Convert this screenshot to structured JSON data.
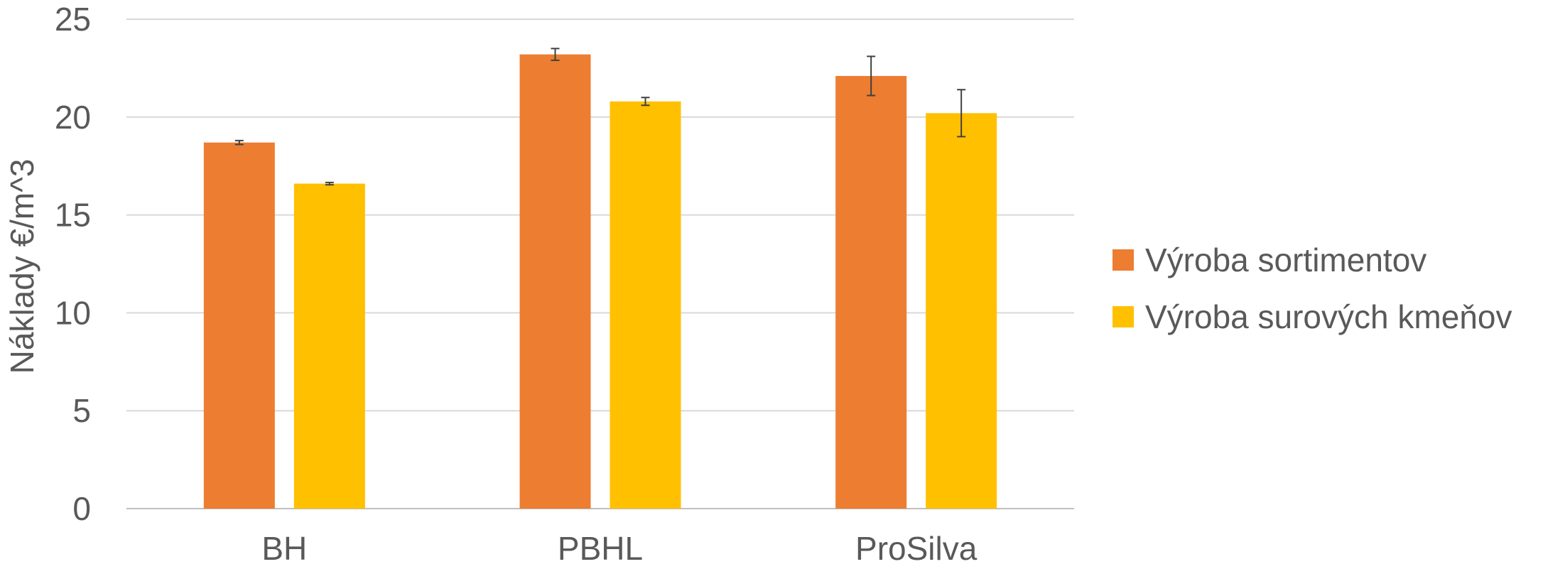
{
  "chart_data": {
    "type": "bar",
    "title": "",
    "xlabel": "",
    "ylabel": "Náklady €/m^3",
    "categories": [
      "BH",
      "PBHL",
      "ProSilva"
    ],
    "ylim": [
      0,
      25
    ],
    "yticks": [
      "0",
      "5",
      "10",
      "15",
      "20",
      "25"
    ],
    "grid": "horizontal",
    "legend_position": "right",
    "series": [
      {
        "name": "Výroba sortimentov",
        "color": "#ED7D31",
        "values": [
          18.7,
          23.2,
          22.1
        ],
        "errors": [
          0.1,
          0.3,
          1.0
        ]
      },
      {
        "name": "Výroba surových kmeňov",
        "color": "#FFC000",
        "values": [
          16.6,
          20.8,
          20.2
        ],
        "errors": [
          0.06,
          0.2,
          1.2
        ]
      }
    ]
  }
}
